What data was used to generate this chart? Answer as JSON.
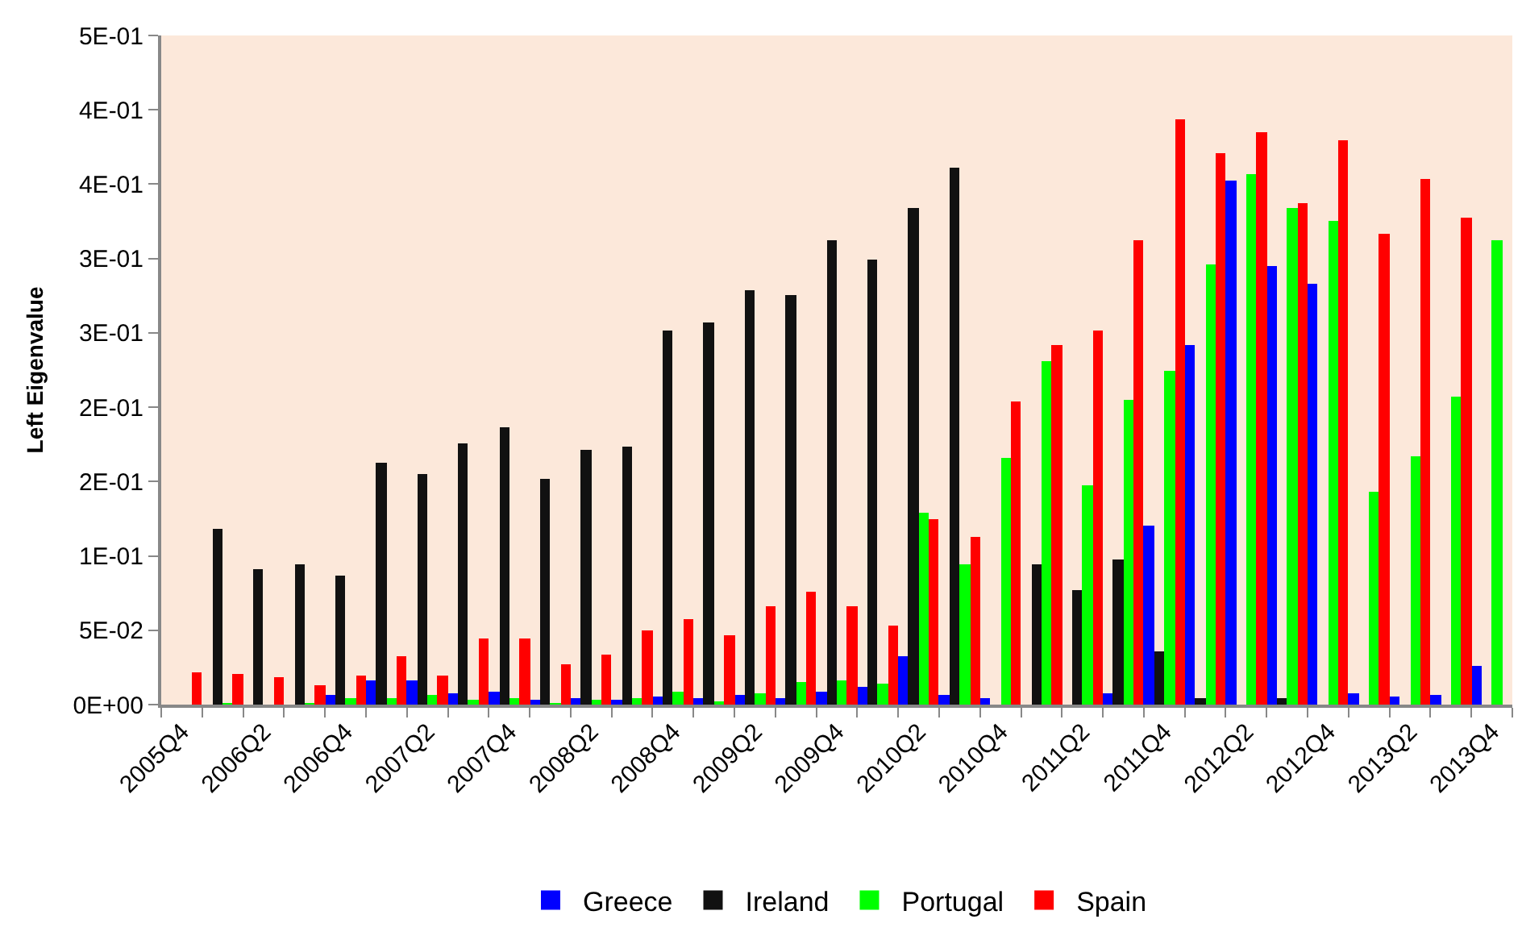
{
  "chart_data": {
    "type": "bar",
    "ylabel": "Left Eigenvalue",
    "categories": [
      "2005Q4",
      null,
      "2006Q2",
      null,
      "2006Q4",
      null,
      "2007Q2",
      null,
      "2007Q4",
      null,
      "2008Q2",
      null,
      "2008Q4",
      null,
      "2009Q2",
      null,
      "2009Q4",
      null,
      "2010Q2",
      null,
      "2010Q4",
      null,
      "2011Q2",
      null,
      "2011Q4",
      null,
      "2012Q2",
      null,
      "2012Q4",
      null,
      "2013Q2",
      null,
      "2013Q4"
    ],
    "series": [
      {
        "name": "Greece",
        "color": "#0000ff",
        "values": [
          0,
          0,
          0,
          0,
          0.007,
          0.016,
          0.016,
          0.008,
          0.009,
          0.003,
          0.004,
          0.003,
          0.005,
          0.004,
          0.006,
          0.004,
          0.009,
          0.012,
          0.033,
          0.007,
          0.004,
          0,
          0,
          0.008,
          0.12,
          0.242,
          0.352,
          0.295,
          0.283,
          0.008,
          0.005,
          0.007,
          0.026
        ]
      },
      {
        "name": "Ireland",
        "color": "#111111",
        "values": [
          0,
          0.118,
          0.091,
          0.094,
          0.087,
          0.163,
          0.155,
          0.176,
          0.186,
          0.152,
          0.171,
          0.174,
          0.252,
          0.257,
          0.279,
          0.275,
          0.312,
          0.299,
          0.334,
          0.361,
          0,
          0.094,
          0.077,
          0.098,
          0.036,
          0.004,
          0,
          0.004,
          0,
          0,
          0,
          0,
          0
        ]
      },
      {
        "name": "Portugal",
        "color": "#00ff00",
        "values": [
          0,
          0.001,
          0,
          0.001,
          0.004,
          0.004,
          0.006,
          0.003,
          0.004,
          0.001,
          0.003,
          0.004,
          0.009,
          0.002,
          0.008,
          0.015,
          0.016,
          0.014,
          0.129,
          0.094,
          0.166,
          0.231,
          0.148,
          0.205,
          0.224,
          0.296,
          0.357,
          0.334,
          0.325,
          0.143,
          0.167,
          0.207,
          0.312
        ]
      },
      {
        "name": "Spain",
        "color": "#ff0000",
        "values": [
          0.022,
          0.021,
          0.018,
          0.013,
          0.02,
          0.032,
          0.02,
          0.045,
          0.044,
          0.027,
          0.034,
          0.05,
          0.057,
          0.047,
          0.066,
          0.076,
          0.066,
          0.053,
          0.125,
          0.113,
          0.204,
          0.242,
          0.252,
          0.312,
          0.394,
          0.371,
          0.385,
          0.337,
          0.379,
          0.317,
          0.354,
          0.327,
          null
        ]
      }
    ],
    "ylim": [
      0,
      0.45
    ],
    "yticks": [
      {
        "value": 0,
        "label": "0E+00"
      },
      {
        "value": 0.05,
        "label": "5E-02"
      },
      {
        "value": 0.1,
        "label": "1E-01"
      },
      {
        "value": 0.15,
        "label": "2E-01"
      },
      {
        "value": 0.2,
        "label": "2E-01"
      },
      {
        "value": 0.25,
        "label": "3E-01"
      },
      {
        "value": 0.3,
        "label": "3E-01"
      },
      {
        "value": 0.35,
        "label": "4E-01"
      },
      {
        "value": 0.4,
        "label": "4E-01"
      },
      {
        "value": 0.45,
        "label": "5E-01"
      }
    ],
    "grid": false,
    "legend": "bottom"
  }
}
